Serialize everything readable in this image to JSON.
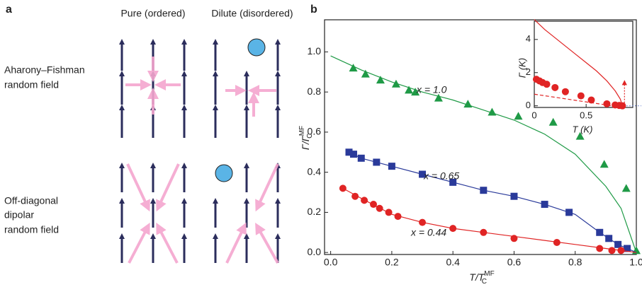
{
  "panel_a": {
    "label": "a",
    "column_titles": [
      "Pure (ordered)",
      "Dilute (disordered)"
    ],
    "row_titles": [
      [
        "Aharony–Fishman",
        "random field"
      ],
      [
        "Off-diagonal",
        "dipolar",
        "random field"
      ]
    ]
  },
  "chart_data": [
    {
      "type": "scatter",
      "panel_label": "b",
      "xlabel": {
        "main": "T/T",
        "sub": "C",
        "sup": "MF"
      },
      "ylabel": {
        "main": "Γ/Γ",
        "sub": "C",
        "sup": "MF"
      },
      "xlim": [
        -0.02,
        1.0
      ],
      "ylim": [
        -0.01,
        1.16
      ],
      "xticks": [
        {
          "value": 0,
          "label": "0.0"
        },
        {
          "value": 0.2,
          "label": "0.2"
        },
        {
          "value": 0.4,
          "label": "0.4"
        },
        {
          "value": 0.6,
          "label": "0.6"
        },
        {
          "value": 0.8,
          "label": "0.8"
        },
        {
          "value": 1,
          "label": "1.0"
        }
      ],
      "yticks": [
        {
          "value": 0,
          "label": "0.0"
        },
        {
          "value": 0.2,
          "label": "0.2"
        },
        {
          "value": 0.4,
          "label": "0.4"
        },
        {
          "value": 0.6,
          "label": "0.6"
        },
        {
          "value": 0.8,
          "label": "0.8"
        },
        {
          "value": 1,
          "label": "1.0"
        }
      ],
      "series": [
        {
          "style": "line",
          "color": "#1f9a46",
          "x": [
            0,
            0.1,
            0.2,
            0.3,
            0.4,
            0.5,
            0.6,
            0.7,
            0.8,
            0.9,
            0.95,
            1.0
          ],
          "values": [
            0.98,
            0.91,
            0.85,
            0.8,
            0.76,
            0.71,
            0.66,
            0.59,
            0.49,
            0.33,
            0.22,
            0.0
          ]
        },
        {
          "style": "markers",
          "marker": "triangle",
          "name": "x = 1.0",
          "color": "#1f9a46",
          "x": [
            0.074,
            0.114,
            0.163,
            0.214,
            0.256,
            0.277,
            0.353,
            0.449,
            0.528,
            0.614,
            0.728,
            0.816,
            0.895,
            0.967,
            1.0
          ],
          "values": [
            0.92,
            0.89,
            0.86,
            0.84,
            0.81,
            0.8,
            0.77,
            0.74,
            0.7,
            0.68,
            0.65,
            0.58,
            0.44,
            0.32,
            0.01
          ]
        },
        {
          "style": "line",
          "color": "#2a3a9a",
          "x": [
            0.06,
            0.1,
            0.2,
            0.3,
            0.4,
            0.5,
            0.6,
            0.7,
            0.8,
            0.88,
            0.94,
            1.0
          ],
          "values": [
            0.5,
            0.47,
            0.43,
            0.39,
            0.35,
            0.31,
            0.28,
            0.24,
            0.19,
            0.1,
            0.04,
            0.0
          ]
        },
        {
          "style": "markers",
          "marker": "square",
          "name": "x = 0.65",
          "color": "#2a3a9a",
          "x": [
            0.06,
            0.075,
            0.1,
            0.15,
            0.2,
            0.3,
            0.4,
            0.5,
            0.6,
            0.7,
            0.78,
            0.88,
            0.91,
            0.94,
            0.97
          ],
          "values": [
            0.5,
            0.49,
            0.47,
            0.45,
            0.43,
            0.39,
            0.35,
            0.31,
            0.28,
            0.24,
            0.2,
            0.1,
            0.07,
            0.04,
            0.02
          ]
        },
        {
          "style": "line",
          "color": "#e02424",
          "x": [
            0.04,
            0.1,
            0.2,
            0.3,
            0.4,
            0.5,
            0.6,
            0.7,
            0.8,
            0.9,
            1.0
          ],
          "values": [
            0.32,
            0.27,
            0.19,
            0.15,
            0.12,
            0.1,
            0.08,
            0.06,
            0.04,
            0.02,
            0.0
          ]
        },
        {
          "style": "markers",
          "marker": "circle",
          "name": "x = 0.44",
          "color": "#e02424",
          "x": [
            0.04,
            0.08,
            0.11,
            0.14,
            0.16,
            0.19,
            0.22,
            0.3,
            0.4,
            0.5,
            0.6,
            0.74,
            0.88,
            0.92,
            0.95
          ],
          "values": [
            0.32,
            0.28,
            0.26,
            0.24,
            0.22,
            0.2,
            0.18,
            0.15,
            0.12,
            0.1,
            0.07,
            0.05,
            0.02,
            0.01,
            0.01
          ]
        }
      ]
    },
    {
      "type": "scatter",
      "xlabel": "T (K)",
      "ylabel": "Γ (K)",
      "xlim": [
        0,
        0.95
      ],
      "ylim": [
        -0.1,
        5.1
      ],
      "xticks": [
        0,
        0.5
      ],
      "yticks": [
        0,
        2,
        4
      ],
      "series": [
        {
          "style": "line",
          "color": "#e02424",
          "x": [
            0,
            0.1,
            0.2,
            0.3,
            0.4,
            0.5,
            0.6,
            0.7,
            0.78,
            0.83,
            0.85
          ],
          "values": [
            5.2,
            4.6,
            4.1,
            3.6,
            3.1,
            2.6,
            2.1,
            1.5,
            0.9,
            0.4,
            0.0
          ]
        },
        {
          "style": "dashed",
          "color": "#e02424",
          "x": [
            0,
            0.75
          ],
          "values": [
            0.7,
            0.0
          ]
        },
        {
          "style": "markers",
          "marker": "circle",
          "color": "#e02424",
          "x": [
            0.02,
            0.05,
            0.08,
            0.12,
            0.2,
            0.3,
            0.45,
            0.55,
            0.7,
            0.78,
            0.82,
            0.85
          ],
          "values": [
            1.6,
            1.5,
            1.4,
            1.3,
            1.1,
            0.85,
            0.6,
            0.35,
            0.12,
            0.05,
            0.02,
            0.0
          ]
        }
      ]
    }
  ]
}
